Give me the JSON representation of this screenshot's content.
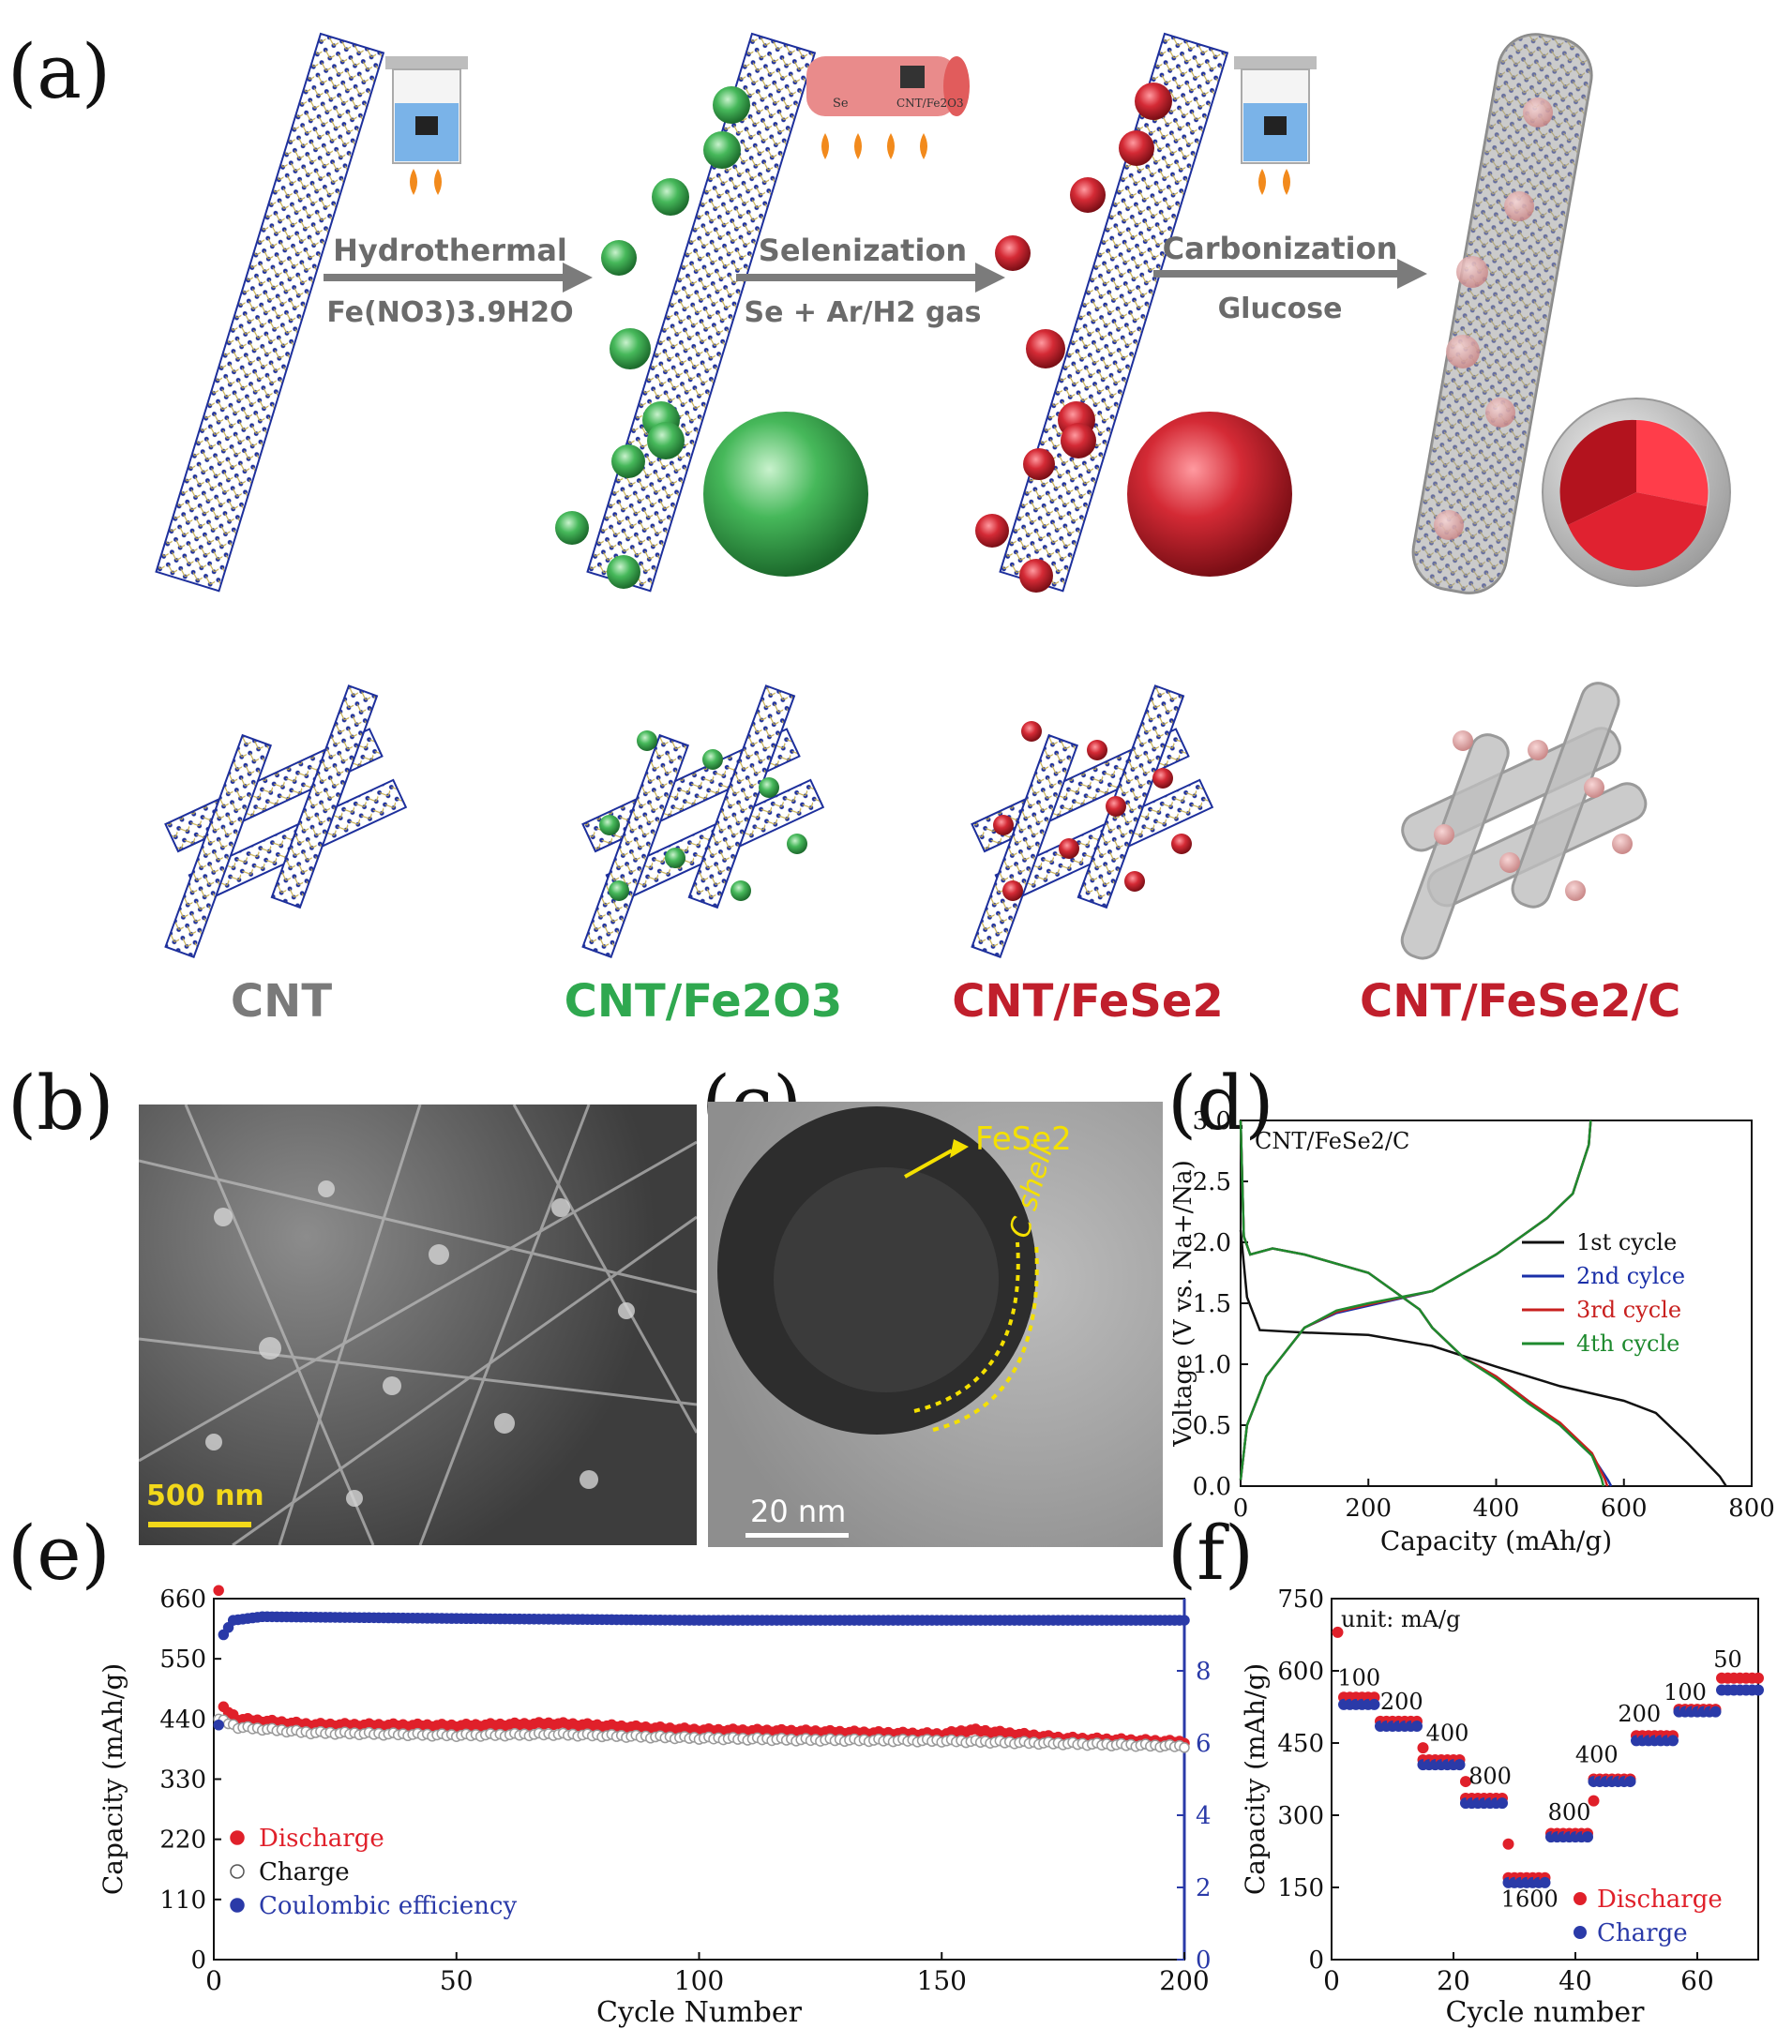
{
  "panel_a": {
    "label": "(a)",
    "steps": [
      {
        "top": "Hydrothermal",
        "bottom": "Fe(NO3)3.9H2O"
      },
      {
        "top": "Selenization",
        "bottom": "Se + Ar/H2 gas"
      },
      {
        "top": "Carbonization",
        "bottom": "Glucose"
      }
    ],
    "furnace_labels": {
      "left": "Se",
      "right": "CNT/Fe2O3"
    },
    "materials": [
      {
        "label": "CNT",
        "color": "#7a7a7a"
      },
      {
        "label": "CNT/Fe2O3",
        "color": "#2fa84f"
      },
      {
        "label": "CNT/FeSe2",
        "color": "#c01f2c"
      },
      {
        "label": "CNT/FeSe2/C",
        "color": "#c01f2c"
      }
    ]
  },
  "panel_b": {
    "label": "(b)",
    "scale_bar": "500 nm"
  },
  "panel_c": {
    "label": "(c)",
    "annot_core": "FeSe2",
    "annot_shell": "C shell",
    "scale_bar": "20 nm"
  },
  "panel_d": {
    "label": "(d)"
  },
  "panel_e": {
    "label": "(e)"
  },
  "panel_f": {
    "label": "(f)"
  },
  "chart_data": [
    {
      "panel": "d",
      "type": "line",
      "title": "CNT/FeSe2/C",
      "xlabel": "Capacity (mAh/g)",
      "ylabel": "Voltage (V vs. Na+/Na)",
      "xlim": [
        0,
        800
      ],
      "ylim": [
        0,
        3.0
      ],
      "xticks": [
        0,
        200,
        400,
        600,
        800
      ],
      "yticks": [
        0.0,
        0.5,
        1.0,
        1.5,
        2.0,
        2.5,
        3.0
      ],
      "legend_position": "right",
      "series": [
        {
          "name": "1st cycle",
          "color": "#111111",
          "discharge": [
            [
              0,
              2.1
            ],
            [
              10,
              1.55
            ],
            [
              30,
              1.28
            ],
            [
              100,
              1.26
            ],
            [
              200,
              1.24
            ],
            [
              300,
              1.15
            ],
            [
              400,
              0.98
            ],
            [
              500,
              0.82
            ],
            [
              600,
              0.7
            ],
            [
              650,
              0.6
            ],
            [
              700,
              0.35
            ],
            [
              750,
              0.08
            ],
            [
              760,
              0.0
            ]
          ],
          "charge": []
        },
        {
          "name": "2nd cylce",
          "color": "#1a2fa8",
          "discharge": [
            [
              0,
              3.0
            ],
            [
              5,
              2.05
            ],
            [
              15,
              1.9
            ],
            [
              50,
              1.95
            ],
            [
              100,
              1.9
            ],
            [
              200,
              1.75
            ],
            [
              280,
              1.45
            ],
            [
              300,
              1.3
            ],
            [
              350,
              1.05
            ],
            [
              400,
              0.9
            ],
            [
              450,
              0.7
            ],
            [
              500,
              0.5
            ],
            [
              550,
              0.25
            ],
            [
              575,
              0.05
            ],
            [
              580,
              0.0
            ]
          ],
          "charge": [
            [
              0,
              0.05
            ],
            [
              10,
              0.5
            ],
            [
              40,
              0.9
            ],
            [
              100,
              1.3
            ],
            [
              150,
              1.42
            ],
            [
              200,
              1.48
            ],
            [
              300,
              1.6
            ],
            [
              400,
              1.9
            ],
            [
              480,
              2.2
            ],
            [
              520,
              2.4
            ],
            [
              545,
              2.8
            ],
            [
              548,
              3.0
            ]
          ]
        },
        {
          "name": "3rd cycle",
          "color": "#c8201f",
          "discharge": [
            [
              0,
              3.0
            ],
            [
              5,
              2.05
            ],
            [
              15,
              1.9
            ],
            [
              50,
              1.95
            ],
            [
              100,
              1.9
            ],
            [
              200,
              1.75
            ],
            [
              280,
              1.45
            ],
            [
              300,
              1.3
            ],
            [
              350,
              1.05
            ],
            [
              400,
              0.9
            ],
            [
              450,
              0.7
            ],
            [
              500,
              0.52
            ],
            [
              550,
              0.27
            ],
            [
              570,
              0.06
            ],
            [
              574,
              0.0
            ]
          ],
          "charge": [
            [
              0,
              0.05
            ],
            [
              10,
              0.5
            ],
            [
              40,
              0.9
            ],
            [
              100,
              1.3
            ],
            [
              150,
              1.43
            ],
            [
              200,
              1.49
            ],
            [
              300,
              1.6
            ],
            [
              400,
              1.9
            ],
            [
              480,
              2.2
            ],
            [
              520,
              2.4
            ],
            [
              545,
              2.8
            ],
            [
              548,
              3.0
            ]
          ]
        },
        {
          "name": "4th cycle",
          "color": "#1e8a2e",
          "discharge": [
            [
              0,
              3.0
            ],
            [
              5,
              2.05
            ],
            [
              15,
              1.9
            ],
            [
              50,
              1.95
            ],
            [
              100,
              1.9
            ],
            [
              200,
              1.75
            ],
            [
              280,
              1.45
            ],
            [
              300,
              1.3
            ],
            [
              350,
              1.05
            ],
            [
              400,
              0.88
            ],
            [
              450,
              0.68
            ],
            [
              500,
              0.5
            ],
            [
              550,
              0.25
            ],
            [
              565,
              0.06
            ],
            [
              568,
              0.0
            ]
          ],
          "charge": [
            [
              0,
              0.05
            ],
            [
              10,
              0.5
            ],
            [
              40,
              0.9
            ],
            [
              100,
              1.3
            ],
            [
              150,
              1.44
            ],
            [
              200,
              1.5
            ],
            [
              300,
              1.6
            ],
            [
              400,
              1.9
            ],
            [
              480,
              2.2
            ],
            [
              520,
              2.4
            ],
            [
              545,
              2.8
            ],
            [
              548,
              3.0
            ]
          ]
        }
      ]
    },
    {
      "panel": "e",
      "type": "scatter",
      "xlabel": "Cycle Number",
      "ylabel": "Capacity (mAh/g)",
      "y2label": "",
      "xlim": [
        0,
        200
      ],
      "ylim": [
        0,
        660
      ],
      "y2lim": [
        0,
        10
      ],
      "xticks": [
        0,
        50,
        100,
        150,
        200
      ],
      "yticks": [
        0,
        110,
        220,
        330,
        440,
        550,
        660
      ],
      "y2ticks": [
        0,
        2,
        4,
        6,
        8
      ],
      "legend_position": "bottom-left",
      "series": [
        {
          "name": "Discharge",
          "color": "#e0202a",
          "points": [
            [
              1,
              675
            ],
            [
              2,
              460
            ],
            [
              5,
              440
            ],
            [
              20,
              430
            ],
            [
              50,
              428
            ],
            [
              70,
              432
            ],
            [
              100,
              420
            ],
            [
              120,
              418
            ],
            [
              150,
              412
            ],
            [
              156,
              420
            ],
            [
              175,
              405
            ],
            [
              200,
              398
            ]
          ]
        },
        {
          "name": "Charge",
          "color": "#9a9a9a",
          "points": [
            [
              1,
              440
            ],
            [
              2,
              436
            ],
            [
              5,
              425
            ],
            [
              20,
              415
            ],
            [
              50,
              410
            ],
            [
              70,
              412
            ],
            [
              100,
              405
            ],
            [
              120,
              402
            ],
            [
              150,
              400
            ],
            [
              175,
              395
            ],
            [
              200,
              390
            ]
          ]
        },
        {
          "name": "Coulombic efficiency",
          "color": "#2a3aa8",
          "axis": "right",
          "points": [
            [
              1,
              6.5
            ],
            [
              2,
              9.0
            ],
            [
              4,
              9.4
            ],
            [
              10,
              9.5
            ],
            [
              50,
              9.45
            ],
            [
              100,
              9.4
            ],
            [
              150,
              9.4
            ],
            [
              200,
              9.4
            ]
          ]
        }
      ]
    },
    {
      "panel": "f",
      "type": "scatter",
      "xlabel": "Cycle number",
      "ylabel": "Capacity (mAh/g)",
      "xlim": [
        0,
        70
      ],
      "ylim": [
        0,
        750
      ],
      "xticks": [
        0,
        20,
        40,
        60
      ],
      "yticks": [
        0,
        150,
        300,
        450,
        600,
        750
      ],
      "annotation": "unit: mA/g",
      "legend_position": "bottom-right",
      "rate_labels": [
        {
          "text": "100",
          "x": 4.5,
          "y": 570
        },
        {
          "text": "200",
          "x": 11.5,
          "y": 520
        },
        {
          "text": "400",
          "x": 19,
          "y": 455
        },
        {
          "text": "800",
          "x": 26,
          "y": 365
        },
        {
          "text": "1600",
          "x": 32.5,
          "y": 110
        },
        {
          "text": "800",
          "x": 39,
          "y": 290
        },
        {
          "text": "400",
          "x": 43.5,
          "y": 410
        },
        {
          "text": "200",
          "x": 50.5,
          "y": 495
        },
        {
          "text": "100",
          "x": 58,
          "y": 540
        },
        {
          "text": "50",
          "x": 65,
          "y": 608
        }
      ],
      "segments": [
        {
          "from": 2,
          "to": 7,
          "discharge": 545,
          "charge": 530
        },
        {
          "from": 8,
          "to": 14,
          "discharge": 495,
          "charge": 485
        },
        {
          "from": 15,
          "to": 21,
          "discharge": 415,
          "charge": 405
        },
        {
          "from": 22,
          "to": 28,
          "discharge": 335,
          "charge": 325
        },
        {
          "from": 29,
          "to": 35,
          "discharge": 170,
          "charge": 160
        },
        {
          "from": 36,
          "to": 42,
          "discharge": 262,
          "charge": 255
        },
        {
          "from": 43,
          "to": 49,
          "discharge": 375,
          "charge": 370
        },
        {
          "from": 50,
          "to": 56,
          "discharge": 465,
          "charge": 455
        },
        {
          "from": 57,
          "to": 63,
          "discharge": 520,
          "charge": 515
        },
        {
          "from": 64,
          "to": 70,
          "discharge": 585,
          "charge": 560
        }
      ],
      "first_points": [
        [
          1,
          680
        ],
        [
          15,
          440
        ],
        [
          22,
          370
        ],
        [
          29,
          240
        ],
        [
          43,
          330
        ]
      ],
      "series": [
        {
          "name": "Discharge",
          "color": "#e0202a"
        },
        {
          "name": "Charge",
          "color": "#2a3aa8"
        }
      ]
    }
  ]
}
